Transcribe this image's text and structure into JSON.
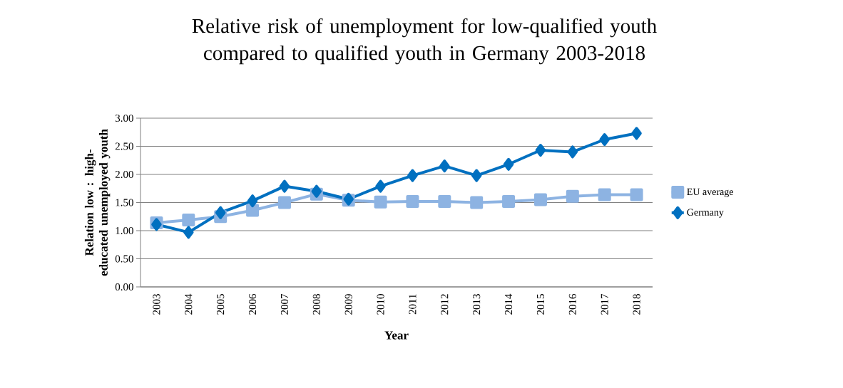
{
  "chart_data": {
    "type": "line",
    "title": "Relative risk of unemployment for low-qualified youth compared to qualified youth in Germany 2003-2018",
    "xlabel": "Year",
    "ylabel": "Relation low : high-educated unemployed youth",
    "categories": [
      "2003",
      "2004",
      "2005",
      "2006",
      "2007",
      "2008",
      "2009",
      "2010",
      "2011",
      "2012",
      "2013",
      "2014",
      "2015",
      "2016",
      "2017",
      "2018"
    ],
    "series": [
      {
        "name": "Germany",
        "color": "#0070c0",
        "marker": "diamond",
        "values": [
          1.11,
          0.97,
          1.32,
          1.53,
          1.79,
          1.7,
          1.56,
          1.79,
          1.98,
          2.15,
          1.98,
          2.18,
          2.43,
          2.4,
          2.62,
          2.73
        ]
      },
      {
        "name": "EU average",
        "color": "#8db3e2",
        "marker": "square",
        "values": [
          1.14,
          1.19,
          1.25,
          1.36,
          1.5,
          1.65,
          1.54,
          1.51,
          1.52,
          1.52,
          1.5,
          1.52,
          1.55,
          1.61,
          1.64,
          1.64
        ]
      }
    ],
    "ylim": [
      0,
      3
    ],
    "yticks": [
      {
        "value": 0,
        "label": "0.00"
      },
      {
        "value": 0.5,
        "label": "0.50"
      },
      {
        "value": 1,
        "label": "1.00"
      },
      {
        "value": 1.5,
        "label": "1.50"
      },
      {
        "value": 2,
        "label": "2.00"
      },
      {
        "value": 2.5,
        "label": "2.50"
      },
      {
        "value": 3,
        "label": "3.00"
      }
    ],
    "grid": "y",
    "legend": "right",
    "line_style": "solid"
  }
}
